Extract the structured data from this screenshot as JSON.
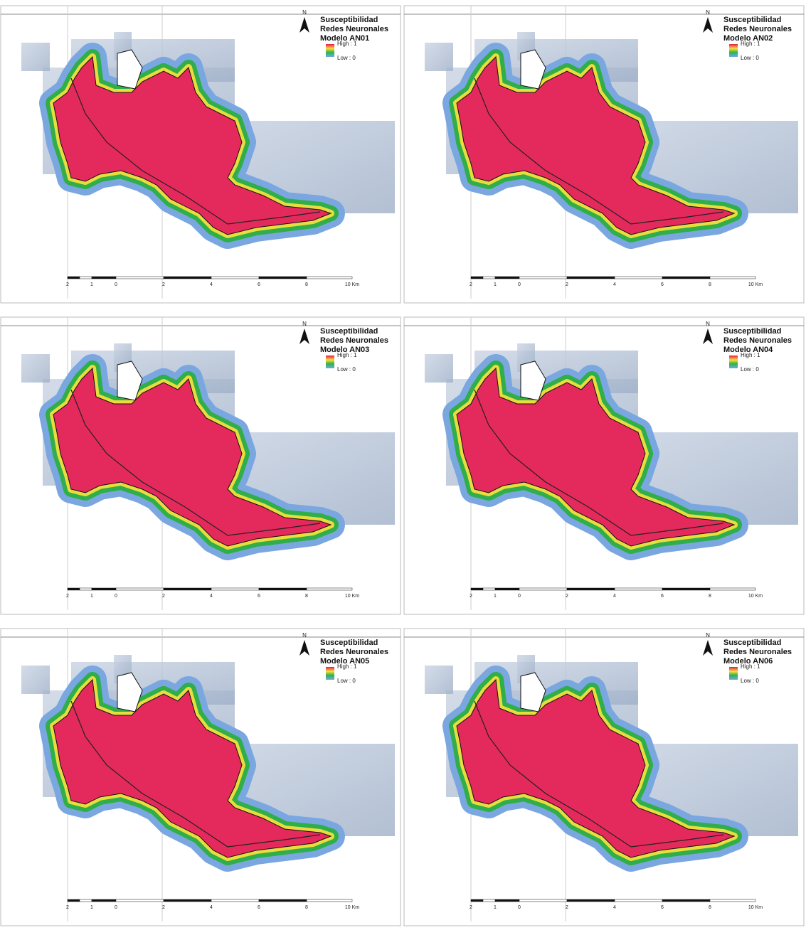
{
  "panels": [
    {
      "title": [
        "Susceptibilidad",
        "Redes Neuronales",
        "Modelo AN01"
      ],
      "north": "N",
      "legend": {
        "high": "High : 1",
        "low": "Low : 0"
      },
      "scale": [
        "2",
        "1",
        "0",
        "2",
        "4",
        "6",
        "8",
        "10 Km"
      ]
    },
    {
      "title": [
        "Susceptibilidad",
        "Redes Neuronales",
        "Modelo AN02"
      ],
      "north": "N",
      "legend": {
        "high": "High : 1",
        "low": "Low : 0"
      },
      "scale": [
        "2",
        "1",
        "0",
        "2",
        "4",
        "6",
        "8",
        "10 Km"
      ]
    },
    {
      "title": [
        "Susceptibilidad",
        "Redes Neuronales",
        "Modelo AN03"
      ],
      "north": "N",
      "legend": {
        "high": "High : 1",
        "low": "Low : 0"
      },
      "scale": [
        "2",
        "1",
        "0",
        "2",
        "4",
        "6",
        "8",
        "10 Km"
      ]
    },
    {
      "title": [
        "Susceptibilidad",
        "Redes Neuronales",
        "Modelo AN04"
      ],
      "north": "N",
      "legend": {
        "high": "High : 1",
        "low": "Low : 0"
      },
      "scale": [
        "2",
        "1",
        "0",
        "2",
        "4",
        "6",
        "8",
        "10 Km"
      ]
    },
    {
      "title": [
        "Susceptibilidad",
        "Redes Neuronales",
        "Modelo AN05"
      ],
      "north": "N",
      "legend": {
        "high": "High : 1",
        "low": "Low : 0"
      },
      "scale": [
        "2",
        "1",
        "0",
        "2",
        "4",
        "6",
        "8",
        "10 Km"
      ]
    },
    {
      "title": [
        "Susceptibilidad",
        "Redes Neuronales",
        "Modelo AN06"
      ],
      "north": "N",
      "legend": {
        "high": "High : 1",
        "low": "Low : 0"
      },
      "scale": [
        "2",
        "1",
        "0",
        "2",
        "4",
        "6",
        "8",
        "10 Km"
      ]
    }
  ]
}
